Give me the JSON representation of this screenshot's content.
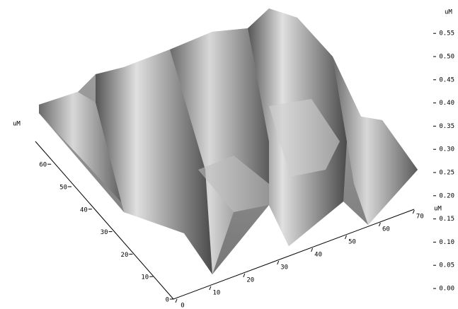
{
  "axes": {
    "x": {
      "label": "uM",
      "ticks": [
        0,
        10,
        20,
        30,
        40,
        50,
        60,
        70
      ]
    },
    "y": {
      "label": "uM",
      "ticks": [
        0,
        10,
        20,
        30,
        40,
        50,
        60
      ]
    },
    "z": {
      "label": "uM",
      "ticks": [
        {
          "value": 0,
          "label": "0.00"
        },
        {
          "value": 0.05,
          "label": "0.05"
        },
        {
          "value": 0.1,
          "label": "0.10"
        },
        {
          "value": 0.15,
          "label": "0.15"
        },
        {
          "value": 0.2,
          "label": "0.20"
        },
        {
          "value": 0.25,
          "label": "0.25"
        },
        {
          "value": 0.3,
          "label": "0.30"
        },
        {
          "value": 0.35,
          "label": "0.35"
        },
        {
          "value": 0.4,
          "label": "0.40"
        },
        {
          "value": 0.45,
          "label": "0.45"
        },
        {
          "value": 0.5,
          "label": "0.50"
        },
        {
          "value": 0.55,
          "label": "0.55"
        }
      ]
    }
  }
}
